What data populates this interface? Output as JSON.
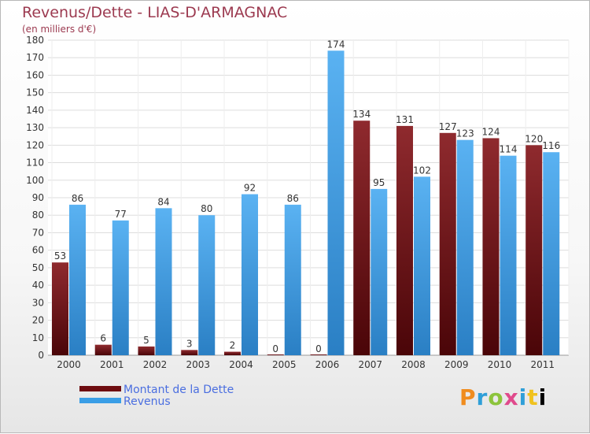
{
  "chart_data": {
    "type": "bar",
    "title": "Revenus/Dette - LIAS-D'ARMAGNAC",
    "subtitle": "(en milliers d'€)",
    "categories": [
      "2000",
      "2001",
      "2002",
      "2003",
      "2004",
      "2005",
      "2006",
      "2007",
      "2008",
      "2009",
      "2010",
      "2011"
    ],
    "series": [
      {
        "name": "Montant de la Dette",
        "color": "#7a1418",
        "values": [
          53,
          6,
          5,
          3,
          2,
          0,
          0,
          134,
          131,
          127,
          124,
          120
        ]
      },
      {
        "name": "Revenus",
        "color": "#3a9ee6",
        "values": [
          86,
          77,
          84,
          80,
          92,
          86,
          174,
          95,
          102,
          123,
          114,
          116
        ]
      }
    ],
    "ylim": [
      0,
      180
    ],
    "yticks": [
      0,
      10,
      20,
      30,
      40,
      50,
      60,
      70,
      80,
      90,
      100,
      110,
      120,
      130,
      140,
      150,
      160,
      170,
      180
    ],
    "grid": true,
    "legend_placement": "bottom-left"
  },
  "logo_text": "Proxiti"
}
